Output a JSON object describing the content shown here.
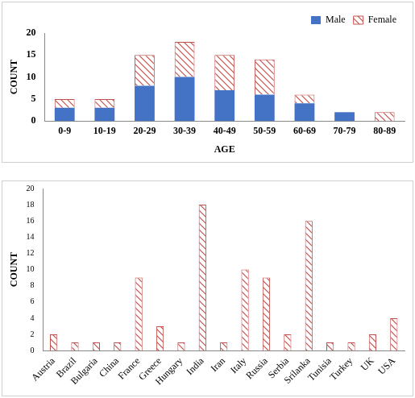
{
  "chart_data": [
    {
      "type": "bar",
      "stacked": true,
      "legend": "upper right",
      "grid": false,
      "x_label": "AGE",
      "y_label": "COUNT",
      "categories": [
        "0-9",
        "10-19",
        "20-29",
        "30-39",
        "40-49",
        "50-59",
        "60-69",
        "70-79",
        "80-89"
      ],
      "series": [
        {
          "name": "Male",
          "color": "#4472c4",
          "values": [
            3,
            3,
            8,
            10,
            7,
            6,
            4,
            2,
            0
          ]
        },
        {
          "name": "Female",
          "color": "#c0504d",
          "marker": "hatch",
          "values": [
            2,
            2,
            7,
            8,
            8,
            8,
            2,
            0,
            2
          ]
        }
      ],
      "ylim": [
        0,
        20
      ],
      "yticks": [
        0,
        5,
        10,
        15,
        20
      ]
    },
    {
      "type": "bar",
      "grid": false,
      "y_label": "COUNT",
      "color": "#c0504d",
      "marker": "hatch",
      "categories": [
        "Austria",
        "Brazil",
        "Bulgaria",
        "China",
        "France",
        "Greece",
        "Hungary",
        "India",
        "Iran",
        "Italy",
        "Russia",
        "Serbia",
        "Srilanka",
        "Tunisia",
        "Turkey",
        "UK",
        "USA"
      ],
      "values": [
        2,
        1,
        1,
        1,
        9,
        3,
        1,
        18,
        1,
        10,
        9,
        2,
        16,
        1,
        1,
        2,
        4
      ],
      "ylim": [
        0,
        20
      ],
      "yticks": [
        0,
        2,
        4,
        6,
        8,
        10,
        12,
        14,
        16,
        18,
        20
      ]
    }
  ]
}
